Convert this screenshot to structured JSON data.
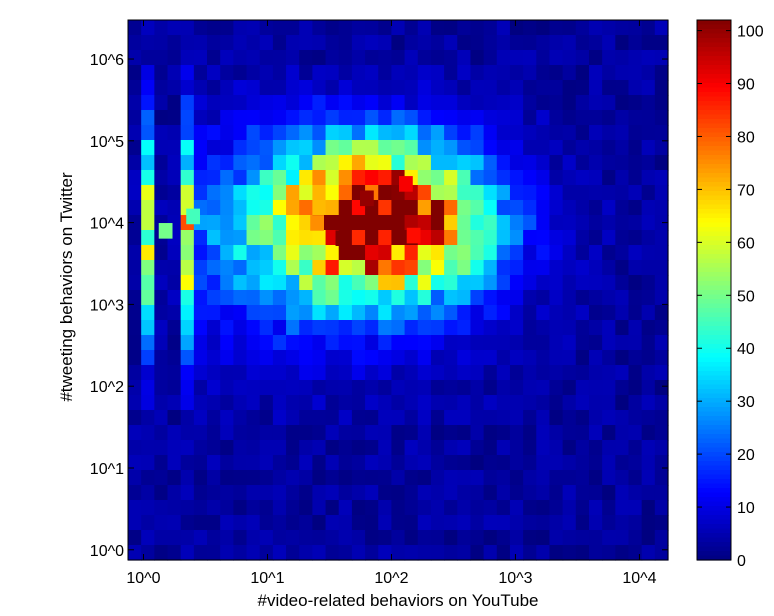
{
  "chart_data": {
    "type": "heatmap",
    "title": "",
    "xlabel": "#video-related behaviors on YouTube",
    "ylabel": "#tweeting behaviors on Twitter",
    "x_scale": "log",
    "y_scale": "log",
    "x_ticks": [
      {
        "value": 1,
        "label": "10^0"
      },
      {
        "value": 10,
        "label": "10^1"
      },
      {
        "value": 100,
        "label": "10^2"
      },
      {
        "value": 1000,
        "label": "10^3"
      },
      {
        "value": 10000,
        "label": "10^4"
      }
    ],
    "y_ticks": [
      {
        "value": 1,
        "label": "10^0"
      },
      {
        "value": 10,
        "label": "10^1"
      },
      {
        "value": 100,
        "label": "10^2"
      },
      {
        "value": 1000,
        "label": "10^3"
      },
      {
        "value": 10000,
        "label": "10^4"
      },
      {
        "value": 100000,
        "label": "10^5"
      },
      {
        "value": 1000000,
        "label": "10^6"
      }
    ],
    "xlim": [
      0.75,
      17000
    ],
    "ylim": [
      0.75,
      3000000
    ],
    "colorbar": {
      "colormap": "jet",
      "range": [
        0,
        102
      ],
      "ticks": [
        0,
        10,
        20,
        30,
        40,
        50,
        60,
        70,
        80,
        90,
        100
      ]
    },
    "grid": {
      "rows": 36,
      "cols": 41,
      "x_log10_range": [
        -0.12,
        4.23
      ],
      "y_log10_range": [
        -0.12,
        6.48
      ],
      "peak_count": 102,
      "peak_regions": [
        {
          "x": 63,
          "y": 20000,
          "count": 100
        },
        {
          "x": 40,
          "y": 6500,
          "count": 102
        },
        {
          "x": 130,
          "y": 30000,
          "count": 90
        },
        {
          "x": 150,
          "y": 7000,
          "count": 88
        },
        {
          "x": 25,
          "y": 10000,
          "count": 75
        },
        {
          "x": 1.5,
          "y": 8000,
          "count": 50
        },
        {
          "x": 2.5,
          "y": 12000,
          "count": 45
        }
      ]
    }
  }
}
